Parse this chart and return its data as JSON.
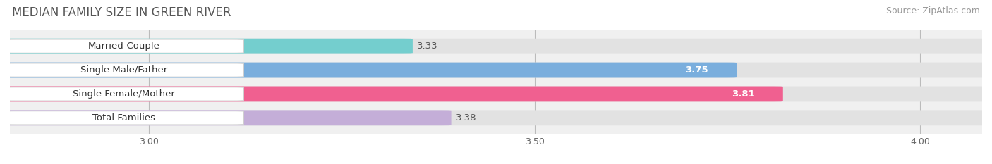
{
  "title": "MEDIAN FAMILY SIZE IN GREEN RIVER",
  "source": "Source: ZipAtlas.com",
  "categories": [
    "Married-Couple",
    "Single Male/Father",
    "Single Female/Mother",
    "Total Families"
  ],
  "values": [
    3.33,
    3.75,
    3.81,
    3.38
  ],
  "bar_colors": [
    "#74cece",
    "#7aaedd",
    "#f06090",
    "#c4aed8"
  ],
  "xlim_min": 2.82,
  "xlim_max": 4.08,
  "xticks": [
    3.0,
    3.5,
    4.0
  ],
  "xtick_labels": [
    "3.00",
    "3.50",
    "4.00"
  ],
  "background_color": "#ffffff",
  "plot_bg_color": "#f0f0f0",
  "bar_height": 0.62,
  "bar_gap": 0.38,
  "value_labels_inside": [
    false,
    true,
    true,
    false
  ],
  "title_fontsize": 12,
  "label_fontsize": 9.5,
  "value_fontsize": 9.5,
  "source_fontsize": 9
}
